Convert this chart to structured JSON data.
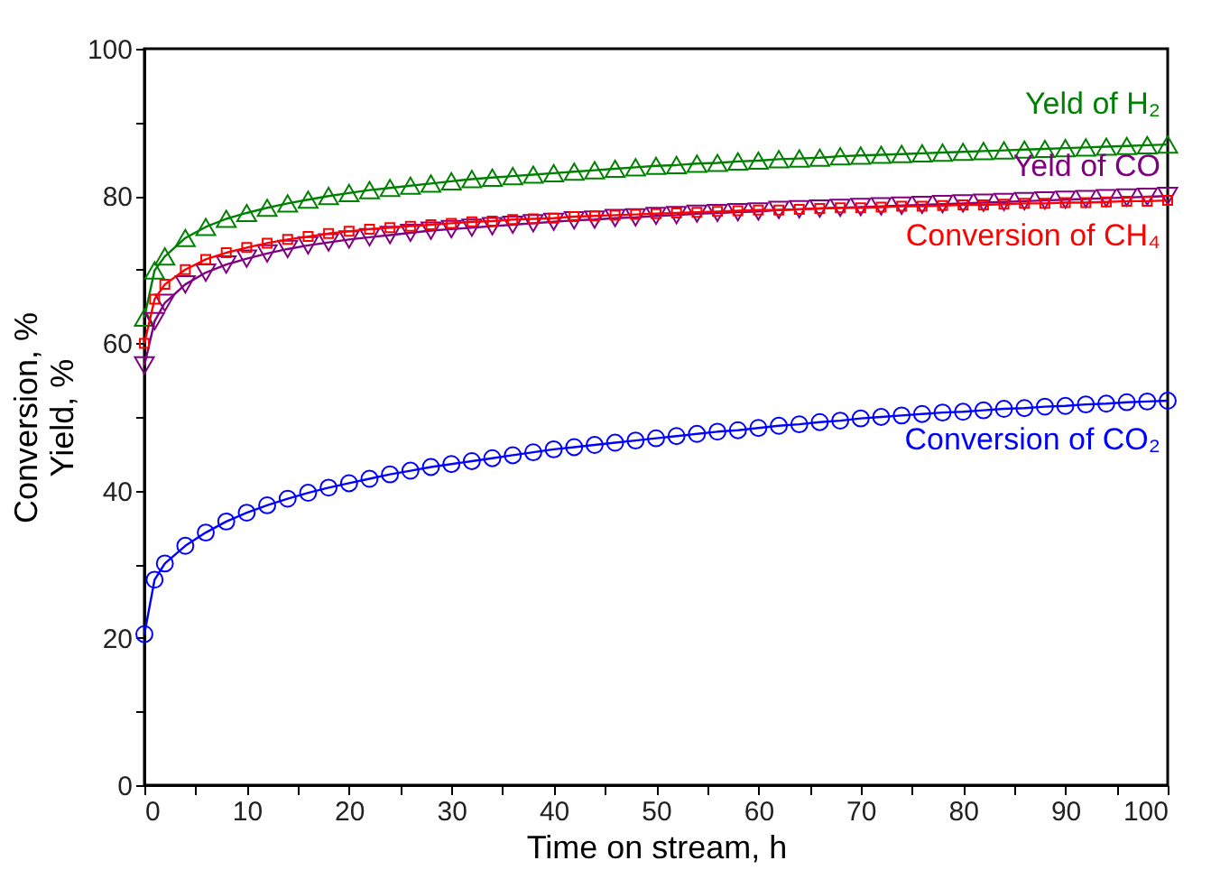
{
  "chart_data": {
    "type": "line",
    "xlabel": "Time on stream, h",
    "ylabel": "Conversion, %\nYield, %",
    "x": [
      0,
      1,
      2,
      4,
      6,
      8,
      10,
      12,
      14,
      16,
      18,
      20,
      22,
      24,
      26,
      28,
      30,
      32,
      34,
      36,
      38,
      40,
      42,
      44,
      46,
      48,
      50,
      52,
      54,
      56,
      58,
      60,
      62,
      64,
      66,
      68,
      70,
      72,
      74,
      76,
      78,
      80,
      82,
      84,
      86,
      88,
      90,
      92,
      94,
      96,
      98,
      100
    ],
    "xlim": [
      0,
      100
    ],
    "ylim": [
      0,
      100
    ],
    "xticks": [
      0,
      {
        "value": 5,
        "label": null
      },
      10,
      {
        "value": 15,
        "label": null
      },
      20,
      {
        "value": 25,
        "label": null
      },
      30,
      {
        "value": 35,
        "label": null
      },
      40,
      {
        "value": 45,
        "label": null
      },
      50,
      {
        "value": 55,
        "label": null
      },
      60,
      {
        "value": 65,
        "label": null
      },
      70,
      {
        "value": 75,
        "label": null
      },
      80,
      {
        "value": 85,
        "label": null
      },
      90,
      {
        "value": 95,
        "label": null
      },
      100
    ],
    "yticks": [
      0,
      {
        "value": 10,
        "label": null
      },
      20,
      {
        "value": 30,
        "label": null
      },
      40,
      {
        "value": 50,
        "label": null
      },
      60,
      {
        "value": 70,
        "label": null
      },
      80,
      {
        "value": 90,
        "label": null
      },
      100
    ],
    "grid": false,
    "line_style": "solid",
    "series": [
      {
        "name": "Yeld of H₂",
        "color": "#008000",
        "marker": "triangle",
        "values": [
          63.5,
          69.9,
          71.8,
          74.3,
          75.8,
          76.9,
          77.7,
          78.4,
          79.0,
          79.5,
          80.0,
          80.4,
          80.8,
          81.1,
          81.4,
          81.7,
          82.0,
          82.3,
          82.5,
          82.7,
          82.9,
          83.1,
          83.3,
          83.5,
          83.7,
          83.9,
          84.1,
          84.2,
          84.4,
          84.5,
          84.7,
          84.8,
          85.0,
          85.1,
          85.2,
          85.4,
          85.5,
          85.6,
          85.7,
          85.8,
          85.9,
          86.0,
          86.1,
          86.2,
          86.3,
          86.4,
          86.5,
          86.6,
          86.7,
          86.8,
          86.9,
          87.0
        ]
      },
      {
        "name": "Yeld of CO",
        "color": "#800080",
        "marker": "triangle-down",
        "values": [
          57,
          63,
          65.5,
          68,
          69.6,
          70.7,
          71.5,
          72.2,
          72.8,
          73.3,
          73.7,
          74.1,
          74.4,
          74.7,
          75.0,
          75.3,
          75.5,
          75.7,
          75.9,
          76.1,
          76.3,
          76.5,
          76.7,
          76.8,
          77.0,
          77.1,
          77.3,
          77.4,
          77.6,
          77.7,
          77.8,
          77.9,
          78.1,
          78.2,
          78.3,
          78.4,
          78.5,
          78.6,
          78.7,
          78.8,
          78.9,
          79.0,
          79.1,
          79.2,
          79.3,
          79.4,
          79.5,
          79.6,
          79.7,
          79.8,
          79.9,
          80.0
        ]
      },
      {
        "name": "Conversion of CH₄",
        "color": "#ff0000",
        "marker": "square",
        "values": [
          60,
          66,
          68,
          70,
          71.4,
          72.3,
          73.0,
          73.6,
          74.1,
          74.5,
          74.9,
          75.2,
          75.5,
          75.7,
          75.9,
          76.1,
          76.3,
          76.5,
          76.6,
          76.8,
          76.9,
          77.0,
          77.2,
          77.3,
          77.4,
          77.5,
          77.6,
          77.7,
          77.8,
          77.9,
          78.0,
          78.1,
          78.1,
          78.2,
          78.3,
          78.4,
          78.4,
          78.5,
          78.6,
          78.6,
          78.7,
          78.8,
          78.8,
          78.9,
          79.0,
          79.0,
          79.1,
          79.1,
          79.2,
          79.3,
          79.3,
          79.4
        ]
      },
      {
        "name": "Conversion of CO₂",
        "color": "#0000ff",
        "marker": "circle",
        "values": [
          20.5,
          27.9,
          30.1,
          32.5,
          34.3,
          35.8,
          37.0,
          38.0,
          38.9,
          39.7,
          40.4,
          41.0,
          41.6,
          42.2,
          42.7,
          43.2,
          43.6,
          44.0,
          44.4,
          44.8,
          45.2,
          45.6,
          45.9,
          46.2,
          46.5,
          46.8,
          47.1,
          47.4,
          47.7,
          48.0,
          48.2,
          48.5,
          48.8,
          49.0,
          49.3,
          49.5,
          49.8,
          50.0,
          50.2,
          50.4,
          50.6,
          50.7,
          50.9,
          51.1,
          51.2,
          51.4,
          51.5,
          51.7,
          51.8,
          52.0,
          52.1,
          52.2
        ]
      }
    ]
  }
}
